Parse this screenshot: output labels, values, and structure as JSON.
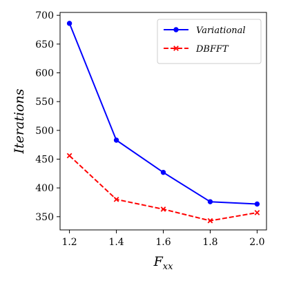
{
  "chart_data": {
    "type": "line",
    "x": [
      1.2,
      1.4,
      1.6,
      1.8,
      2.0
    ],
    "series": [
      {
        "name": "Variational",
        "values": [
          686,
          483,
          427,
          376,
          372
        ],
        "color": "#0000ff",
        "marker": "circle",
        "linestyle": "solid"
      },
      {
        "name": "DBFFT",
        "values": [
          456,
          380,
          363,
          343,
          357
        ],
        "color": "#ff0000",
        "marker": "x",
        "linestyle": "dashed"
      }
    ],
    "xlabel": "F",
    "xlabel_sub": "xx",
    "ylabel": "Iterations",
    "xlim": [
      1.16,
      2.04
    ],
    "ylim": [
      327,
      705
    ],
    "xticks": [
      1.2,
      1.4,
      1.6,
      1.8,
      2.0
    ],
    "xtick_labels": [
      "1.2",
      "1.4",
      "1.6",
      "1.8",
      "2.0"
    ],
    "yticks": [
      350,
      400,
      450,
      500,
      550,
      600,
      650,
      700
    ],
    "ytick_labels": [
      "350",
      "400",
      "450",
      "500",
      "550",
      "600",
      "650",
      "700"
    ],
    "grid": false,
    "legend_position": "top-right"
  }
}
